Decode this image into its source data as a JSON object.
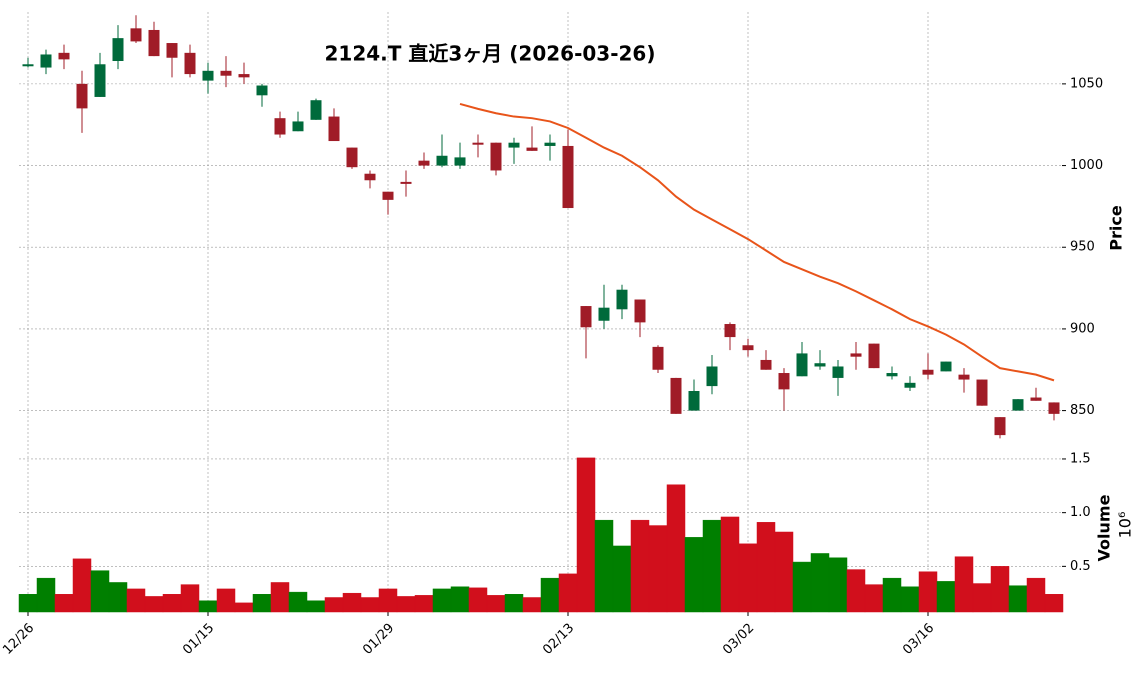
{
  "chart_data": {
    "type": "candlestick",
    "title": "2124.T  直近3ヶ月  (2026-03-26)",
    "categories": [
      "12/26",
      null,
      null,
      null,
      null,
      null,
      null,
      null,
      null,
      null,
      "01/15",
      null,
      null,
      null,
      null,
      null,
      null,
      null,
      null,
      null,
      "01/29",
      null,
      null,
      null,
      null,
      null,
      null,
      null,
      null,
      null,
      "02/13",
      null,
      null,
      null,
      null,
      null,
      null,
      null,
      null,
      null,
      "03/02",
      null,
      null,
      null,
      null,
      null,
      null,
      null,
      null,
      null,
      "03/16",
      null,
      null,
      null,
      null,
      null,
      null,
      null
    ],
    "open": [
      1061,
      1060,
      1069,
      1050,
      1042,
      1064,
      1084,
      1083,
      1075,
      1069,
      1052,
      1058,
      1056,
      1043,
      1029,
      1021,
      1028,
      1030,
      1011,
      995,
      984,
      990,
      1003,
      1000,
      1000,
      1014,
      1014,
      1011,
      1011,
      1012,
      1012,
      914,
      905,
      912,
      918,
      889,
      870,
      850,
      865,
      903,
      890,
      881,
      873,
      871,
      877,
      870,
      885,
      891,
      871,
      864,
      875,
      874,
      872,
      869,
      846,
      850,
      858,
      855
    ],
    "high": [
      1066,
      1071,
      1074,
      1058,
      1069,
      1086,
      1092,
      1088,
      1075,
      1074,
      1063,
      1067,
      1063,
      1050,
      1033,
      1033,
      1041,
      1035,
      1011,
      997,
      984,
      997,
      1008,
      1019,
      1014,
      1019,
      1014,
      1017,
      1024,
      1019,
      1022,
      914,
      927,
      927,
      918,
      890,
      870,
      869,
      884,
      904,
      894,
      887,
      876,
      892,
      887,
      881,
      892,
      891,
      877,
      871,
      885,
      880,
      876,
      869,
      846,
      857,
      864,
      855
    ],
    "low": [
      1060,
      1056,
      1059,
      1020,
      1042,
      1059,
      1075,
      1067,
      1054,
      1054,
      1044,
      1048,
      1050,
      1036,
      1017,
      1021,
      1028,
      1015,
      998,
      986,
      970,
      981,
      998,
      999,
      998,
      1005,
      994,
      1001,
      1009,
      1003,
      974,
      882,
      900,
      906,
      895,
      873,
      848,
      850,
      860,
      887,
      883,
      875,
      850,
      871,
      875,
      859,
      875,
      876,
      869,
      862,
      869,
      874,
      861,
      853,
      833,
      850,
      856,
      844
    ],
    "close": [
      1062,
      1068,
      1065,
      1035,
      1062,
      1078,
      1076,
      1067,
      1066,
      1056,
      1058,
      1055,
      1054,
      1049,
      1019,
      1027,
      1040,
      1015,
      999,
      991,
      979,
      989,
      1000,
      1006,
      1005,
      1013,
      997,
      1014,
      1009,
      1014,
      974,
      901,
      913,
      924,
      904,
      875,
      848,
      862,
      877,
      895,
      887,
      875,
      863,
      885,
      879,
      877,
      883,
      876,
      873,
      867,
      872,
      880,
      869,
      853,
      835,
      857,
      856,
      848
    ],
    "up_color": "#006a3b",
    "down_color": "#a01c27",
    "ylim": [
      832,
      1094
    ],
    "yticks": [
      850,
      900,
      950,
      1000,
      1050
    ],
    "y_label": "Price",
    "grid": true,
    "ma_color": "#e8541a",
    "ma_values": [
      null,
      null,
      null,
      null,
      null,
      null,
      null,
      null,
      null,
      null,
      null,
      null,
      null,
      null,
      null,
      null,
      null,
      null,
      null,
      null,
      null,
      null,
      null,
      null,
      1037.7,
      1034.7,
      1032,
      1030,
      1029,
      1027,
      1023,
      1017,
      1011,
      1006,
      999,
      991,
      981,
      973,
      967,
      961,
      955,
      948,
      941,
      936.5,
      932,
      928,
      923,
      917.5,
      912,
      906,
      901.5,
      896.5,
      890.5,
      883,
      876,
      874,
      872,
      868.5
    ],
    "volume": {
      "values": [
        0.24,
        0.39,
        0.24,
        0.57,
        0.46,
        0.35,
        0.29,
        0.22,
        0.24,
        0.33,
        0.18,
        0.29,
        0.16,
        0.24,
        0.35,
        0.26,
        0.18,
        0.21,
        0.25,
        0.21,
        0.29,
        0.22,
        0.23,
        0.29,
        0.31,
        0.3,
        0.23,
        0.24,
        0.21,
        0.39,
        0.43,
        1.51,
        0.93,
        0.69,
        0.93,
        0.88,
        1.26,
        0.77,
        0.93,
        0.96,
        0.71,
        0.91,
        0.82,
        0.54,
        0.62,
        0.58,
        0.47,
        0.33,
        0.39,
        0.31,
        0.45,
        0.36,
        0.59,
        0.34,
        0.5,
        0.32,
        0.39,
        0.24
      ],
      "ylim": [
        0.075,
        1.63
      ],
      "yticks": [
        0.5,
        {
          "value": 1,
          "label": "1.0"
        },
        1.5
      ],
      "label": "Volume",
      "scale_label": "10⁶",
      "up_color": "#007f00",
      "down_color": "#d10f1c"
    }
  }
}
